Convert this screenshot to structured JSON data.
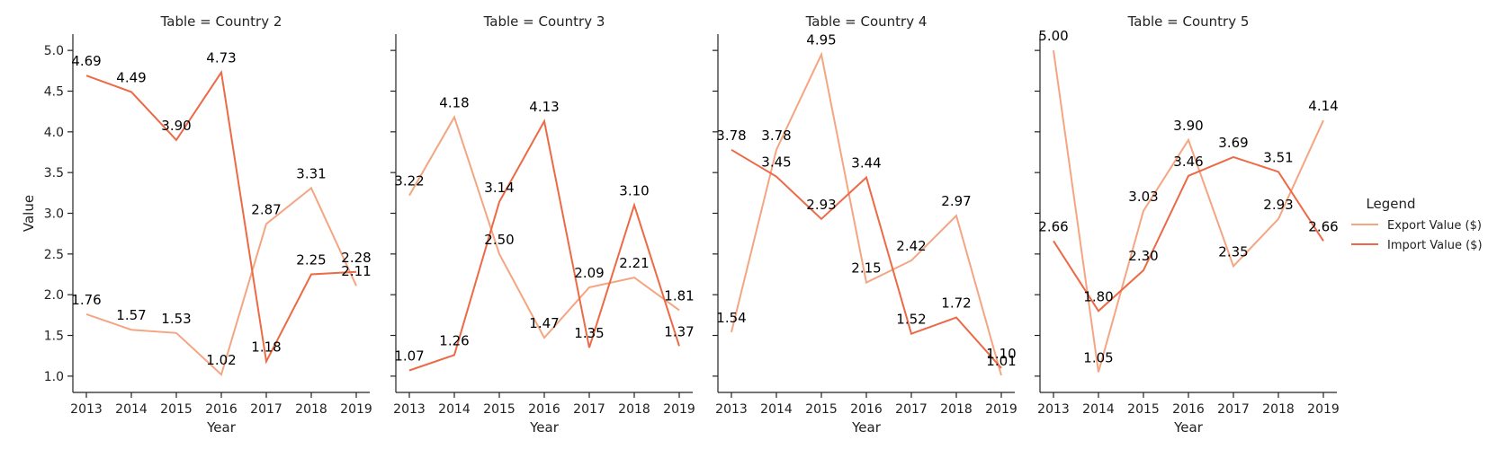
{
  "chart_data": {
    "type": "line",
    "facet_titles": [
      "Table = Country 2",
      "Table = Country 3",
      "Table = Country 4",
      "Table = Country 5"
    ],
    "xlabel": "Year",
    "ylabel": "Value",
    "x": [
      2013,
      2014,
      2015,
      2016,
      2017,
      2018,
      2019
    ],
    "ylim": [
      0.8,
      5.2
    ],
    "yticks": [
      "1.0",
      "1.5",
      "2.0",
      "2.5",
      "3.0",
      "3.5",
      "4.0",
      "4.5",
      "5.0"
    ],
    "legend_title": "Legend",
    "legend_position": "right",
    "series_names": [
      "Export Value ($)",
      "Import Value ($)"
    ],
    "series_colors": [
      "#f4a582",
      "#ec6a45"
    ],
    "panels": [
      {
        "title": "Table = Country 2",
        "export": [
          1.76,
          1.57,
          1.53,
          1.02,
          2.87,
          3.31,
          2.11
        ],
        "import": [
          4.69,
          4.49,
          3.9,
          4.73,
          1.18,
          2.25,
          2.28
        ],
        "export_labels": [
          "1.76",
          "1.57",
          "1.53",
          "1.02",
          "2.87",
          "3.31",
          "2.11"
        ],
        "import_labels": [
          "4.69",
          "4.49",
          "3.90",
          "4.73",
          "1.18",
          "2.25",
          "2.28"
        ]
      },
      {
        "title": "Table = Country 3",
        "export": [
          3.22,
          4.18,
          2.5,
          1.47,
          2.09,
          2.21,
          1.81
        ],
        "import": [
          1.07,
          1.26,
          3.14,
          4.13,
          1.35,
          3.1,
          1.37
        ],
        "export_labels": [
          "3.22",
          "4.18",
          "2.50",
          "1.47",
          "2.09",
          "2.21",
          "1.81"
        ],
        "import_labels": [
          "1.07",
          "1.26",
          "3.14",
          "4.13",
          "1.35",
          "3.10",
          "1.37"
        ]
      },
      {
        "title": "Table = Country 4",
        "export": [
          1.54,
          3.78,
          4.95,
          2.15,
          2.42,
          2.97,
          1.01
        ],
        "import": [
          3.78,
          3.45,
          2.93,
          3.44,
          1.52,
          1.72,
          1.1
        ],
        "export_labels": [
          "1.54",
          "3.78",
          "4.95",
          "2.15",
          "2.42",
          "2.97",
          "1.01"
        ],
        "import_labels": [
          "3.78",
          "3.45",
          "2.93",
          "3.44",
          "1.52",
          "1.72",
          "1.10"
        ]
      },
      {
        "title": "Table = Country 5",
        "export": [
          5.0,
          1.05,
          3.03,
          3.9,
          2.35,
          2.93,
          4.14
        ],
        "import": [
          2.66,
          1.8,
          2.3,
          3.46,
          3.69,
          3.51,
          2.66
        ],
        "export_labels": [
          "5.00",
          "1.05",
          "3.03",
          "3.90",
          "2.35",
          "2.93",
          "4.14"
        ],
        "import_labels": [
          "2.66",
          "1.80",
          "2.30",
          "3.46",
          "3.69",
          "3.51",
          "2.66"
        ]
      }
    ]
  }
}
